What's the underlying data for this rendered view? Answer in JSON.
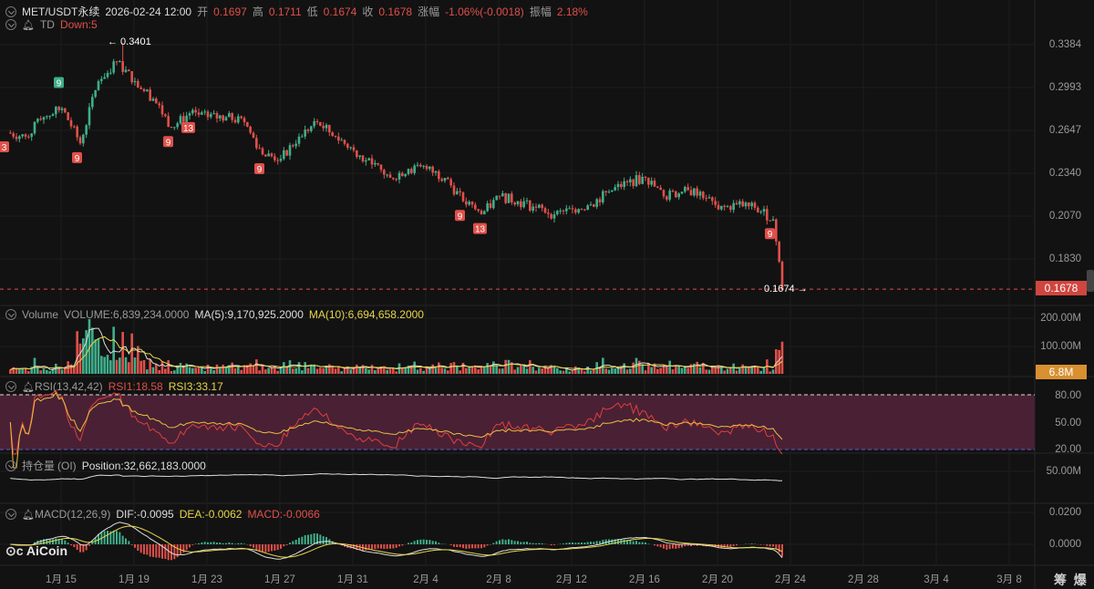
{
  "header": {
    "symbol": "MET/USDT永续",
    "datetime": "2026-02-24 12:00",
    "open_label": "开",
    "open": "0.1697",
    "high_label": "高",
    "high": "0.1711",
    "low_label": "低",
    "low": "0.1674",
    "close_label": "收",
    "close": "0.1678",
    "change_label": "涨幅",
    "change": "-1.06%(-0.0018)",
    "amp_label": "振幅",
    "amp": "2.18%"
  },
  "td": {
    "label": "TD",
    "value": "Down:5"
  },
  "volume": {
    "label": "Volume",
    "value": "VOLUME:6,839,234.0000",
    "ma5": "MA(5):9,170,925.2000",
    "ma10": "MA(10):6,694,658.2000",
    "axis": [
      "200.00M",
      "100.00M"
    ],
    "tag": "6.8M"
  },
  "rsi": {
    "label": "RSI(13,42,42)",
    "rsi1": "RSI1:18.58",
    "rsi3": "RSI3:33.17",
    "axis": [
      "80.00",
      "50.00",
      "20.00"
    ]
  },
  "oi": {
    "label": "持仓量",
    "sub": "(OI)",
    "value": "Position:32,662,183.0000",
    "axis": [
      "50.00M"
    ]
  },
  "macd": {
    "label": "MACD(12,26,9)",
    "dif": "DIF:-0.0095",
    "dea": "DEA:-0.0062",
    "macd": "MACD:-0.0066",
    "axis": [
      "0.0200",
      "0.0000"
    ]
  },
  "price_axis": [
    "0.3384",
    "0.2993",
    "0.2647",
    "0.2340",
    "0.2070",
    "0.1830"
  ],
  "last_price_tag": "0.1678",
  "high_annotation": "← 0.3401",
  "low_annotation": "0.1674 →",
  "x_axis": [
    "1月 15",
    "1月 19",
    "1月 23",
    "1月 27",
    "1月 31",
    "2月 4",
    "2月 8",
    "2月 12",
    "2月 16",
    "2月 20",
    "2月 24",
    "2月 28",
    "3月 4",
    "3月 8"
  ],
  "corner_buttons": [
    "筹",
    "爆"
  ],
  "logo": "AiCoin",
  "colors": {
    "up": "#3fae8a",
    "down": "#e0504a",
    "ma5": "#dddddd",
    "ma10": "#e8d54a",
    "rsi_band": "#4a2035",
    "background": "#121212"
  },
  "chart_data": {
    "type": "candlestick",
    "scale": "log",
    "interval": "4h",
    "grid": true,
    "ylim": [
      0.1674,
      0.3401
    ],
    "daily_close": {
      "dates": [
        "1/12",
        "1/13",
        "1/14",
        "1/15",
        "1/16",
        "1/17",
        "1/18",
        "1/19",
        "1/20",
        "1/21",
        "1/22",
        "1/23",
        "1/24",
        "1/25",
        "1/26",
        "1/27",
        "1/28",
        "1/29",
        "1/30",
        "1/31",
        "2/1",
        "2/2",
        "2/3",
        "2/4",
        "2/5",
        "2/6",
        "2/7",
        "2/8",
        "2/9",
        "2/10",
        "2/11",
        "2/12",
        "2/13",
        "2/14",
        "2/15",
        "2/16",
        "2/17",
        "2/18",
        "2/19",
        "2/20",
        "2/21",
        "2/22",
        "2/23",
        "2/24"
      ],
      "values": [
        0.263,
        0.26,
        0.275,
        0.282,
        0.255,
        0.305,
        0.322,
        0.305,
        0.29,
        0.267,
        0.278,
        0.275,
        0.275,
        0.271,
        0.247,
        0.244,
        0.26,
        0.271,
        0.26,
        0.25,
        0.24,
        0.231,
        0.237,
        0.237,
        0.231,
        0.216,
        0.208,
        0.219,
        0.216,
        0.212,
        0.208,
        0.211,
        0.214,
        0.222,
        0.228,
        0.231,
        0.219,
        0.222,
        0.222,
        0.211,
        0.214,
        0.212,
        0.205,
        0.1678
      ]
    },
    "td_markers": [
      {
        "date": "1/12",
        "label": "3",
        "color": "down"
      },
      {
        "date": "1/15",
        "label": "9",
        "color": "up"
      },
      {
        "date": "1/16",
        "label": "9",
        "color": "down"
      },
      {
        "date": "1/21",
        "label": "9",
        "color": "down"
      },
      {
        "date": "1/22",
        "label": "13",
        "color": "down"
      },
      {
        "date": "1/26",
        "label": "9",
        "color": "down"
      },
      {
        "date": "2/6",
        "label": "9",
        "color": "down"
      },
      {
        "date": "2/7",
        "label": "13",
        "color": "down"
      },
      {
        "date": "2/23",
        "label": "9",
        "color": "down"
      }
    ]
  }
}
